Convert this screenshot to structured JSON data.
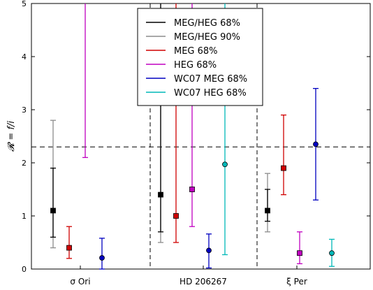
{
  "chart_data": {
    "type": "scatter",
    "title": "",
    "xlabel": "",
    "ylabel": "𝓡 = f/i",
    "ylim": [
      0,
      5
    ],
    "y_ticks": [
      "0",
      "1",
      "2",
      "3",
      "4",
      "5"
    ],
    "categories": [
      "σ Ori",
      "HD 206267",
      "ξ Per"
    ],
    "grid": false,
    "reference_line": {
      "y": 2.3,
      "style": "dashed"
    },
    "group_dividers": "dashed vertical lines between star groups",
    "legend": {
      "placement": "top-center"
    },
    "series": [
      {
        "name": "MEG/HEG 68%",
        "color": "#000000",
        "marker": "square",
        "points": [
          {
            "category": "σ Ori",
            "value": 1.1,
            "low": 0.6,
            "high": 1.9
          },
          {
            "category": "HD 206267",
            "value": 1.4,
            "low": 0.7,
            "high": 5.0
          },
          {
            "category": "ξ Per",
            "value": 1.1,
            "low": 0.9,
            "high": 1.5
          }
        ]
      },
      {
        "name": "MEG/HEG 90%",
        "color": "#8c8c8c",
        "marker": "none",
        "points": [
          {
            "category": "σ Ori",
            "value": 1.1,
            "low": 0.4,
            "high": 2.8
          },
          {
            "category": "HD 206267",
            "value": 1.4,
            "low": 0.5,
            "high": 5.0
          },
          {
            "category": "ξ Per",
            "value": 1.1,
            "low": 0.7,
            "high": 1.8
          }
        ]
      },
      {
        "name": "MEG 68%",
        "color": "#d00000",
        "marker": "square",
        "points": [
          {
            "category": "σ Ori",
            "value": 0.4,
            "low": 0.2,
            "high": 0.8
          },
          {
            "category": "HD 206267",
            "value": 1.0,
            "low": 0.5,
            "high": 5.0
          },
          {
            "category": "ξ Per",
            "value": 1.9,
            "low": 1.4,
            "high": 2.9
          }
        ]
      },
      {
        "name": "HEG 68%",
        "color": "#c000c0",
        "marker": "square",
        "points": [
          {
            "category": "σ Ori",
            "value": null,
            "low": 2.1,
            "high": 5.0
          },
          {
            "category": "HD 206267",
            "value": 1.5,
            "low": 0.8,
            "high": 5.0
          },
          {
            "category": "ξ Per",
            "value": 0.3,
            "low": 0.1,
            "high": 0.7
          }
        ]
      },
      {
        "name": "WC07 MEG 68%",
        "color": "#0000c0",
        "marker": "circle",
        "points": [
          {
            "category": "σ Ori",
            "value": 0.21,
            "low": 0.0,
            "high": 0.58
          },
          {
            "category": "HD 206267",
            "value": 0.35,
            "low": 0.02,
            "high": 0.66
          },
          {
            "category": "ξ Per",
            "value": 2.35,
            "low": 1.3,
            "high": 3.4
          }
        ]
      },
      {
        "name": "WC07 HEG 68%",
        "color": "#00b8b8",
        "marker": "circle",
        "points": [
          {
            "category": "HD 206267",
            "value": 1.97,
            "low": 0.27,
            "high": 5.0
          },
          {
            "category": "ξ Per",
            "value": 0.3,
            "low": 0.05,
            "high": 0.56
          }
        ]
      }
    ]
  }
}
